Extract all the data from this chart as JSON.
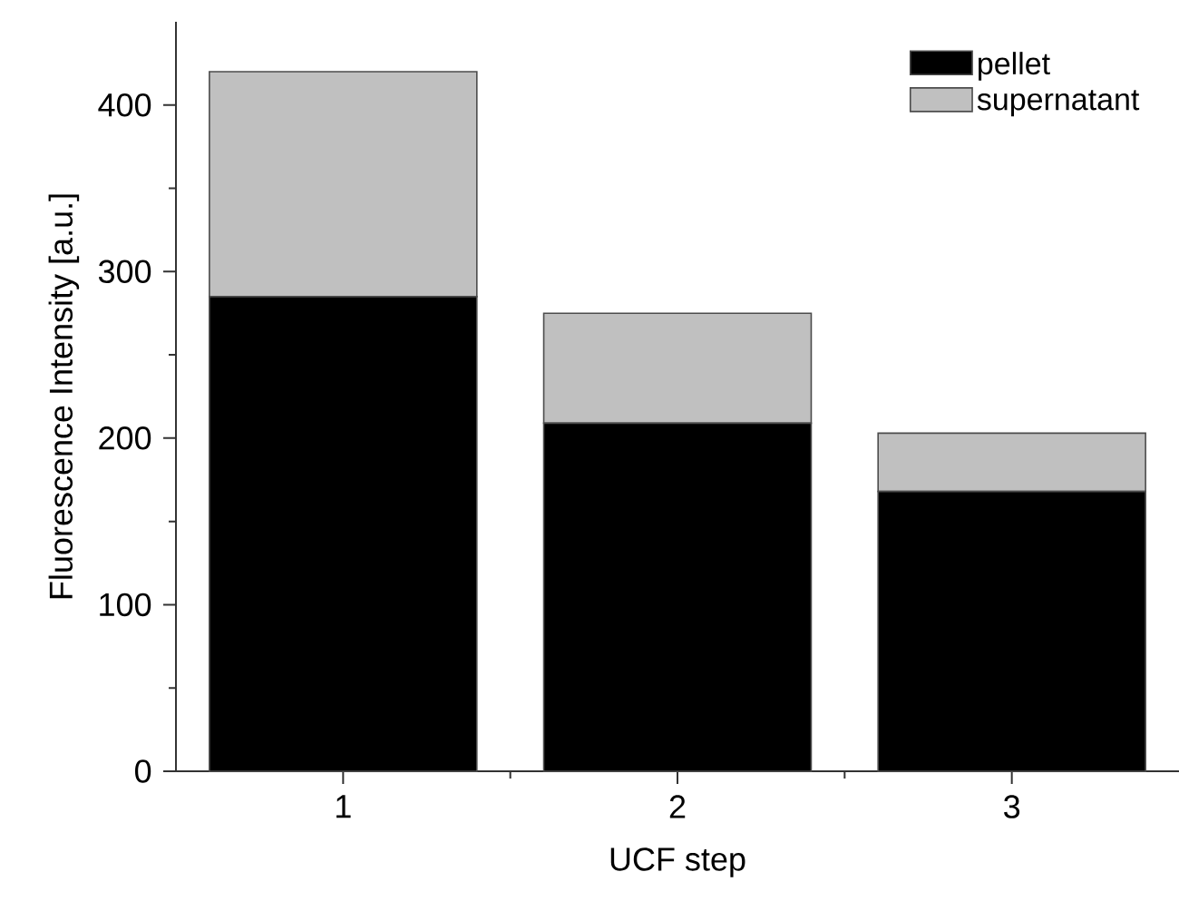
{
  "chart_data": {
    "type": "bar",
    "stacked": true,
    "xlabel": "UCF step",
    "ylabel": "Fluorescence Intensity [a.u.]",
    "categories": [
      "1",
      "2",
      "3"
    ],
    "series": [
      {
        "name": "pellet",
        "color": "#000000",
        "values": [
          285,
          209,
          168
        ]
      },
      {
        "name": "supernatant",
        "color": "#c0c0c0",
        "values": [
          135,
          66,
          35
        ]
      }
    ],
    "ylim": [
      0,
      450
    ],
    "yticks": [
      0,
      100,
      200,
      300,
      400
    ],
    "legend": "top right"
  }
}
